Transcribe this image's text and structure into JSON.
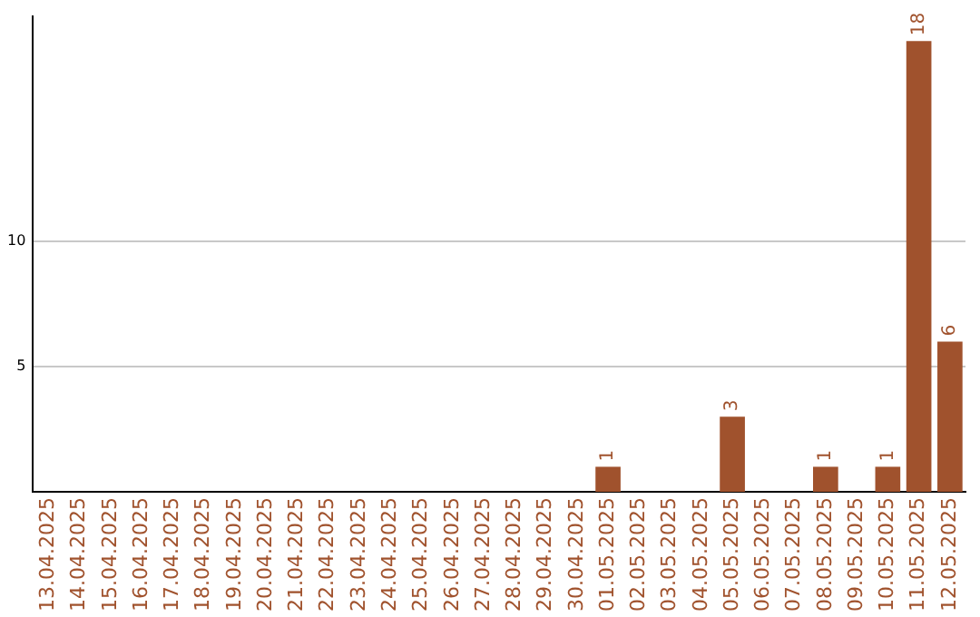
{
  "chart_data": {
    "type": "bar",
    "categories": [
      "13.04.2025",
      "14.04.2025",
      "15.04.2025",
      "16.04.2025",
      "17.04.2025",
      "18.04.2025",
      "19.04.2025",
      "20.04.2025",
      "21.04.2025",
      "22.04.2025",
      "23.04.2025",
      "24.04.2025",
      "25.04.2025",
      "26.04.2025",
      "27.04.2025",
      "28.04.2025",
      "29.04.2025",
      "30.04.2025",
      "01.05.2025",
      "02.05.2025",
      "03.05.2025",
      "04.05.2025",
      "05.05.2025",
      "06.05.2025",
      "07.05.2025",
      "08.05.2025",
      "09.05.2025",
      "10.05.2025",
      "11.05.2025",
      "12.05.2025"
    ],
    "values": [
      0,
      0,
      0,
      0,
      0,
      0,
      0,
      0,
      0,
      0,
      0,
      0,
      0,
      0,
      0,
      0,
      0,
      0,
      1,
      0,
      0,
      0,
      3,
      0,
      0,
      1,
      0,
      1,
      18,
      6
    ],
    "value_labels": [
      null,
      null,
      null,
      null,
      null,
      null,
      null,
      null,
      null,
      null,
      null,
      null,
      null,
      null,
      null,
      null,
      null,
      null,
      "1",
      null,
      null,
      null,
      "3",
      null,
      null,
      "1",
      null,
      "1",
      "18",
      "6"
    ],
    "color": "#a0522d",
    "ylim": [
      0,
      19
    ],
    "yticks": [
      5,
      10
    ],
    "grid": "y",
    "legend": false
  }
}
